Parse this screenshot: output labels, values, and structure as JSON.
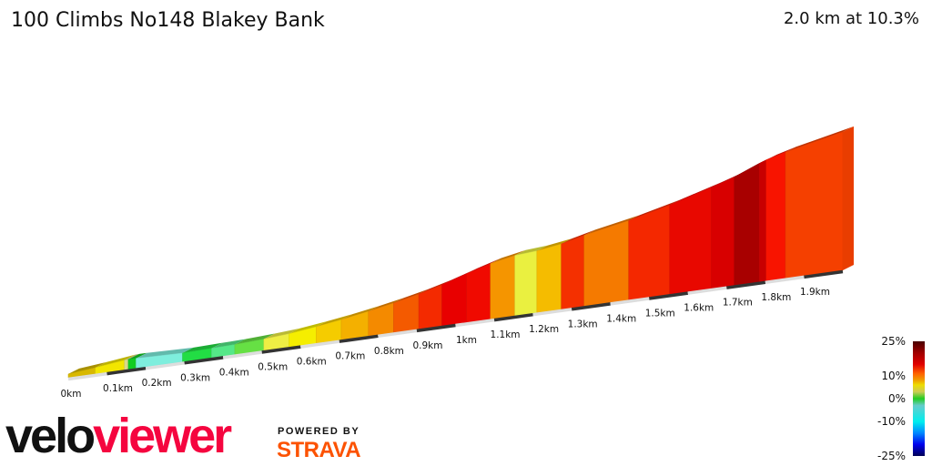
{
  "header": {
    "title": "100 Climbs No148 Blakey Bank",
    "summary": "2.0 km at 10.3%"
  },
  "branding": {
    "logo_part1": "velo",
    "logo_part2": "viewer",
    "powered_by": "POWERED BY",
    "strava": "STRAVA"
  },
  "chart_data": {
    "type": "area",
    "title": "100 Climbs No148 Blakey Bank",
    "xlabel": "",
    "ylabel": "",
    "x_unit": "km",
    "x_ticks": [
      "0km",
      "0.1km",
      "0.2km",
      "0.3km",
      "0.4km",
      "0.5km",
      "0.6km",
      "0.7km",
      "0.8km",
      "0.9km",
      "1km",
      "1.1km",
      "1.2km",
      "1.3km",
      "1.4km",
      "1.5km",
      "1.6km",
      "1.7km",
      "1.8km",
      "1.9km"
    ],
    "xlim": [
      0,
      2.0
    ],
    "segments": [
      {
        "start_km": 0.0,
        "end_km": 0.07,
        "gradient": 4,
        "color": "#d8b800"
      },
      {
        "start_km": 0.07,
        "end_km": 0.145,
        "gradient": 5,
        "color": "#f2e600"
      },
      {
        "start_km": 0.145,
        "end_km": 0.155,
        "gradient": 2,
        "color": "#d9d88a"
      },
      {
        "start_km": 0.155,
        "end_km": 0.175,
        "gradient": 0,
        "color": "#11cc22"
      },
      {
        "start_km": 0.175,
        "end_km": 0.295,
        "gradient": -1,
        "color": "#7eeedd"
      },
      {
        "start_km": 0.295,
        "end_km": 0.37,
        "gradient": 1,
        "color": "#22dd44"
      },
      {
        "start_km": 0.37,
        "end_km": 0.43,
        "gradient": 1,
        "color": "#55e888"
      },
      {
        "start_km": 0.43,
        "end_km": 0.505,
        "gradient": 2,
        "color": "#66e044"
      },
      {
        "start_km": 0.505,
        "end_km": 0.57,
        "gradient": 3,
        "color": "#eeee44"
      },
      {
        "start_km": 0.57,
        "end_km": 0.64,
        "gradient": 5,
        "color": "#f5ee00"
      },
      {
        "start_km": 0.64,
        "end_km": 0.705,
        "gradient": 6,
        "color": "#f5cc00"
      },
      {
        "start_km": 0.705,
        "end_km": 0.775,
        "gradient": 7,
        "color": "#f4b000"
      },
      {
        "start_km": 0.775,
        "end_km": 0.84,
        "gradient": 8,
        "color": "#f48a00"
      },
      {
        "start_km": 0.84,
        "end_km": 0.905,
        "gradient": 9,
        "color": "#f45a00"
      },
      {
        "start_km": 0.905,
        "end_km": 0.965,
        "gradient": 11,
        "color": "#f42a00"
      },
      {
        "start_km": 0.965,
        "end_km": 1.028,
        "gradient": 13,
        "color": "#e80000"
      },
      {
        "start_km": 1.028,
        "end_km": 1.09,
        "gradient": 12,
        "color": "#f00a00"
      },
      {
        "start_km": 1.09,
        "end_km": 1.153,
        "gradient": 8,
        "color": "#f59500"
      },
      {
        "start_km": 1.153,
        "end_km": 1.21,
        "gradient": 3,
        "color": "#eaf040"
      },
      {
        "start_km": 1.21,
        "end_km": 1.273,
        "gradient": 6,
        "color": "#f5bc00"
      },
      {
        "start_km": 1.273,
        "end_km": 1.332,
        "gradient": 10,
        "color": "#f43000"
      },
      {
        "start_km": 1.332,
        "end_km": 1.447,
        "gradient": 8,
        "color": "#f57a00"
      },
      {
        "start_km": 1.447,
        "end_km": 1.553,
        "gradient": 10,
        "color": "#f42800"
      },
      {
        "start_km": 1.553,
        "end_km": 1.661,
        "gradient": 12,
        "color": "#e80800"
      },
      {
        "start_km": 1.661,
        "end_km": 1.72,
        "gradient": 13,
        "color": "#d80000"
      },
      {
        "start_km": 1.72,
        "end_km": 1.784,
        "gradient": 17,
        "color": "#a80000"
      },
      {
        "start_km": 1.784,
        "end_km": 1.802,
        "gradient": 15,
        "color": "#c80000"
      },
      {
        "start_km": 1.802,
        "end_km": 1.852,
        "gradient": 11,
        "color": "#f81400"
      },
      {
        "start_km": 1.852,
        "end_km": 2.0,
        "gradient": 9,
        "color": "#f54000"
      }
    ],
    "color_scale": {
      "labels": [
        "25%",
        "10%",
        "0%",
        "-10%",
        "-25%"
      ],
      "values": [
        25,
        10,
        0,
        -10,
        -25
      ],
      "range": [
        -25,
        25
      ],
      "stops": [
        {
          "v": 25,
          "c": "#4a0000"
        },
        {
          "v": 20,
          "c": "#a00000"
        },
        {
          "v": 15,
          "c": "#e00000"
        },
        {
          "v": 11,
          "c": "#ff6000"
        },
        {
          "v": 8,
          "c": "#f0a000"
        },
        {
          "v": 6,
          "c": "#eedd00"
        },
        {
          "v": 3,
          "c": "#cccc55"
        },
        {
          "v": 0,
          "c": "#22cc22"
        },
        {
          "v": -3,
          "c": "#66cccc"
        },
        {
          "v": -10,
          "c": "#00eeee"
        },
        {
          "v": -15,
          "c": "#0088ff"
        },
        {
          "v": -20,
          "c": "#0000ee"
        },
        {
          "v": -25,
          "c": "#000055"
        }
      ]
    }
  }
}
